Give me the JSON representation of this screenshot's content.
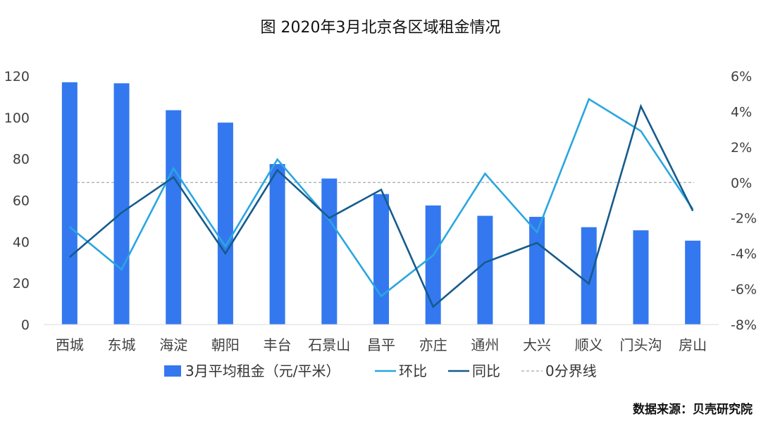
{
  "chart_data": {
    "type": "bar",
    "title": "图 2020年3月北京各区域租金情况",
    "categories": [
      "西城",
      "东城",
      "海淀",
      "朝阳",
      "丰台",
      "石景山",
      "昌平",
      "亦庄",
      "通州",
      "大兴",
      "顺义",
      "门头沟",
      "房山"
    ],
    "y_left": {
      "ylim": [
        0,
        120
      ],
      "ticks": [
        "0",
        "20",
        "40",
        "60",
        "80",
        "100",
        "120"
      ],
      "tick_values": [
        0,
        20,
        40,
        60,
        80,
        100,
        120
      ]
    },
    "y_right": {
      "ylim": [
        -8,
        6
      ],
      "ticks": [
        "-8%",
        "-6%",
        "-4%",
        "-2%",
        "0%",
        "2%",
        "4%",
        "6%"
      ],
      "tick_values": [
        -8,
        -6,
        -4,
        -2,
        0,
        2,
        4,
        6
      ]
    },
    "series": [
      {
        "name": "3月平均租金（元/平米）",
        "type": "bar",
        "axis": "left",
        "color": "#3478F0",
        "values": [
          117,
          116.5,
          103.5,
          97.5,
          77.5,
          70.5,
          63,
          57.5,
          52.5,
          52,
          47,
          45.5,
          40.5
        ]
      },
      {
        "name": "环比",
        "type": "line",
        "axis": "right",
        "color": "#2AA6E0",
        "values": [
          -2.5,
          -4.9,
          0.8,
          -3.6,
          1.3,
          -2.1,
          -6.4,
          -4.1,
          0.5,
          -2.8,
          4.7,
          2.9,
          -1.5
        ]
      },
      {
        "name": "同比",
        "type": "line",
        "axis": "right",
        "color": "#155B8C",
        "values": [
          -4.2,
          -1.7,
          0.3,
          -4.0,
          0.7,
          -2.0,
          -0.4,
          -7.0,
          -4.5,
          -3.4,
          -5.7,
          4.3,
          -1.6
        ]
      },
      {
        "name": "0分界线",
        "type": "reference-line",
        "axis": "right",
        "color": "#A6A6A6",
        "value": 0
      }
    ],
    "source": "数据来源：贝壳研究院",
    "legend_placement": "bottom",
    "grid": false
  }
}
